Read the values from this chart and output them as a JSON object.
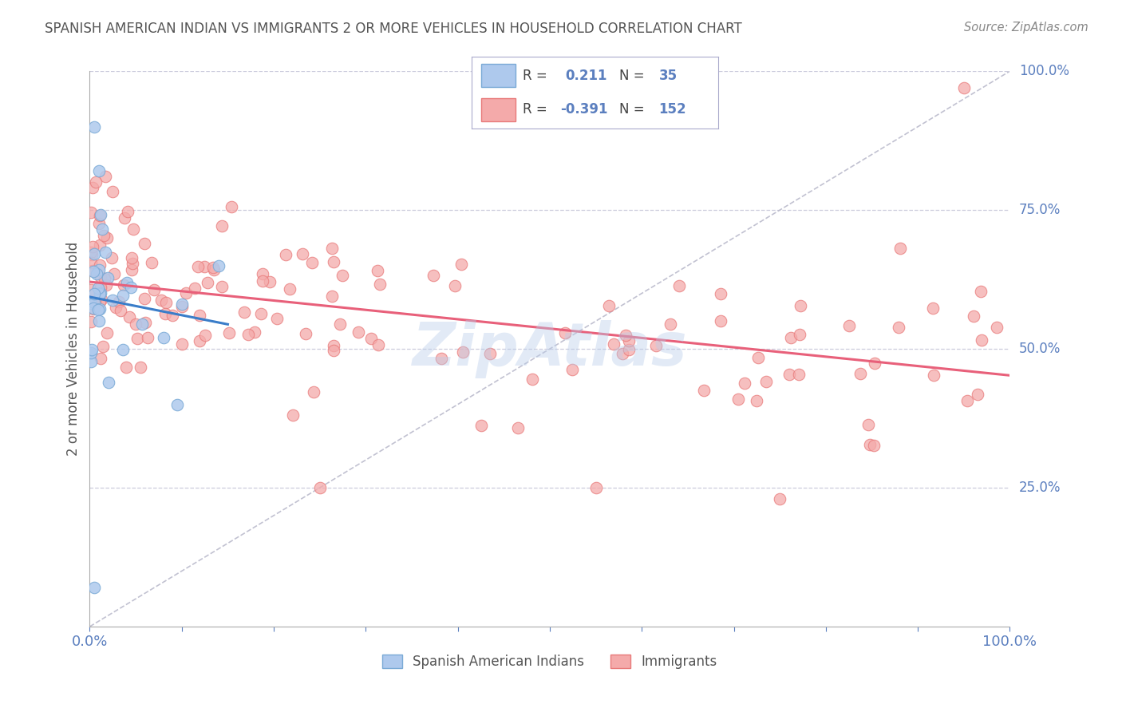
{
  "title": "SPANISH AMERICAN INDIAN VS IMMIGRANTS 2 OR MORE VEHICLES IN HOUSEHOLD CORRELATION CHART",
  "source": "Source: ZipAtlas.com",
  "ylabel_label": "2 or more Vehicles in Household",
  "legend_labels": [
    "Spanish American Indians",
    "Immigrants"
  ],
  "r_blue": 0.211,
  "n_blue": 35,
  "r_pink": -0.391,
  "n_pink": 152,
  "blue_color": "#AEC9ED",
  "blue_edge": "#7AAAD6",
  "blue_line": "#3A7DC9",
  "pink_color": "#F4AAAA",
  "pink_edge": "#E87A7A",
  "pink_line": "#E8607A",
  "title_color": "#555555",
  "source_color": "#888888",
  "axis_label_color": "#555555",
  "tick_color": "#5B7FBF",
  "grid_color": "#CCCCDD",
  "watermark_color": "#B8CCEA",
  "diag_color": "#BBBBCC"
}
